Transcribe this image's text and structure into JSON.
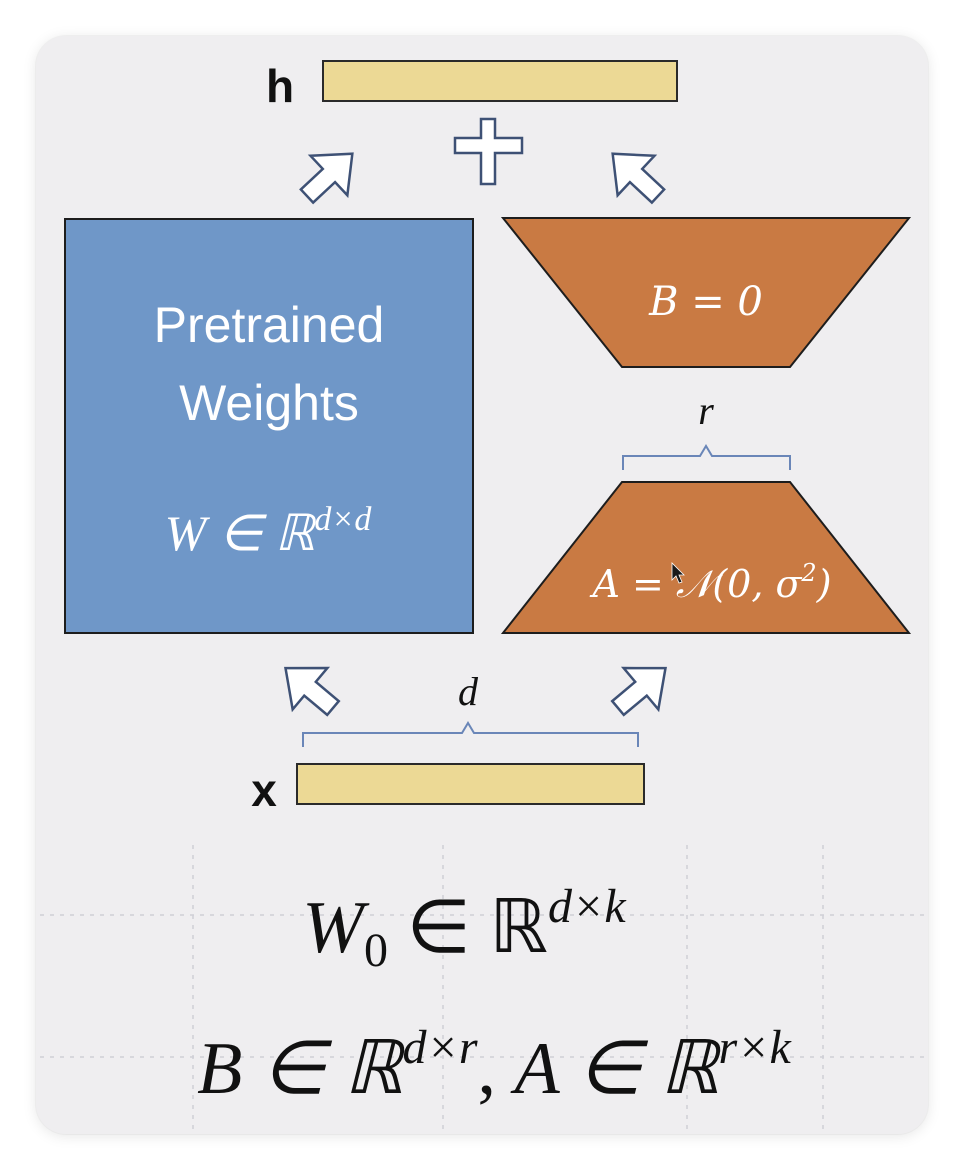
{
  "diagram": {
    "labels": {
      "h": "h",
      "x": "x",
      "d": "d",
      "r": "r"
    },
    "pretrained": {
      "line1": "Pretrained",
      "line2": "Weights",
      "math_base": "W ∈ ℝ",
      "math_sup": "d×d"
    },
    "b_block": {
      "text": "B = 0"
    },
    "a_block": {
      "text_pre": "A = 𝒩(0, σ",
      "text_sup": "2",
      "text_post": ")"
    },
    "plus_symbol": "+"
  },
  "equations": {
    "line1_base": "W",
    "line1_sub": "0",
    "line1_mid": " ∈ ℝ",
    "line1_sup": "d×k",
    "line2_b_base": "B ∈ ℝ",
    "line2_b_sup": "d×r",
    "line2_comma": ", ",
    "line2_a_base": "A ∈ ℝ",
    "line2_a_sup": "r×k"
  },
  "colors": {
    "card_bg": "#efeef0",
    "pretrained_fill": "#6f97c8",
    "orange_fill": "#c97a43",
    "vector_fill": "#ecd995",
    "arrow_stroke": "#3e5175",
    "brace_stroke": "#6a86b8",
    "grid": "#cfcfd6"
  }
}
